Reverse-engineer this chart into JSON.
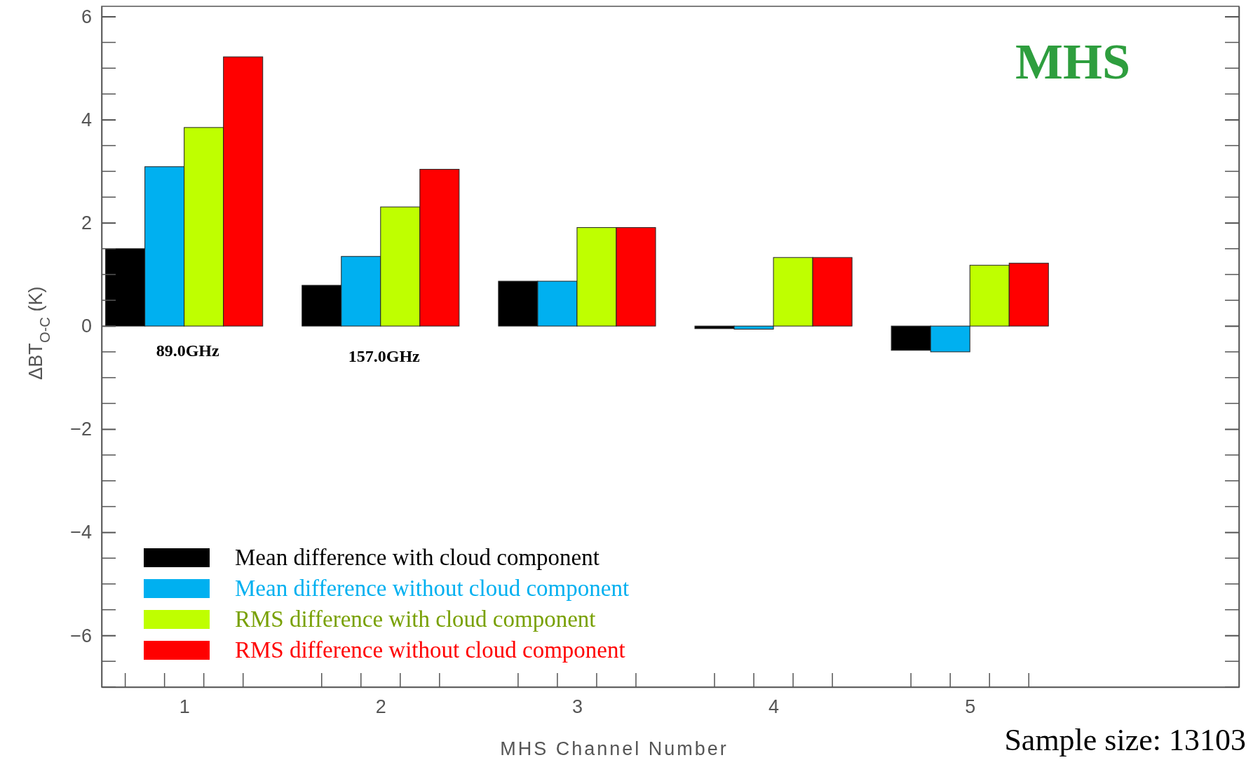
{
  "chart_data": {
    "type": "bar",
    "title": "MHS",
    "xlabel": "MHS Channel Number",
    "ylabel": "ΔBT$_{O-C}$ (K)",
    "x": [
      1,
      2,
      3,
      4,
      5
    ],
    "xlim": [
      0.58,
      6.37
    ],
    "xticks": [
      1,
      2,
      3,
      4,
      5
    ],
    "ylim": [
      -7,
      6.2
    ],
    "yticks": [
      {
        "value": -6,
        "label": "−6"
      },
      {
        "value": -4,
        "label": "−4"
      },
      {
        "value": -2,
        "label": "−2"
      },
      0,
      2,
      4,
      6
    ],
    "series": [
      {
        "name": "Mean difference with cloud component",
        "color": "#000000",
        "values": [
          1.5,
          0.79,
          0.87,
          -0.05,
          -0.47
        ]
      },
      {
        "name": "Mean difference without cloud component",
        "color": "#00b0f0",
        "values": [
          3.09,
          1.35,
          0.87,
          -0.06,
          -0.5
        ]
      },
      {
        "name": "RMS difference with cloud component",
        "color": "#bfff00",
        "values": [
          3.85,
          2.31,
          1.91,
          1.33,
          1.18
        ]
      },
      {
        "name": "RMS difference without cloud component",
        "color": "#ff0000",
        "values": [
          5.22,
          3.04,
          1.91,
          1.33,
          1.22
        ]
      }
    ],
    "legend": "bottom left",
    "grid": false,
    "annotations": [
      "89.0GHz",
      "157.0GHz",
      "Sample size: 13103"
    ]
  }
}
